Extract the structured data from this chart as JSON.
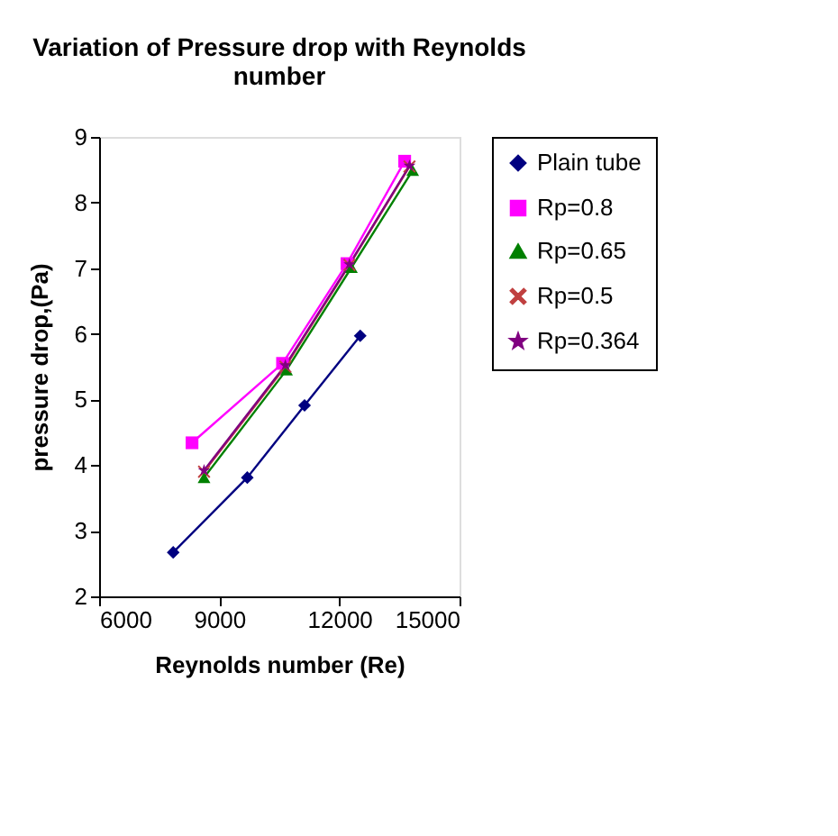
{
  "chart_data": {
    "type": "line",
    "title": "Variation of Pressure drop with Reynolds number",
    "xlabel": "Reynolds number (Re)",
    "ylabel": "pressure drop,(Pa)",
    "xlim": [
      6000,
      15000
    ],
    "xticks": [
      6000,
      9000,
      12000,
      15000
    ],
    "ylim": [
      2,
      9
    ],
    "yticks": [
      2,
      3,
      4,
      5,
      6,
      7,
      8,
      9
    ],
    "grid": false,
    "legend": "right",
    "series": [
      {
        "name": "Plain tube",
        "color": "#000080",
        "marker": "diamond",
        "x": [
          7850,
          9700,
          11130,
          12520
        ],
        "values": [
          2.67,
          3.81,
          4.91,
          5.97
        ]
      },
      {
        "name": "Rp=0.8",
        "color": "#ff00ff",
        "marker": "square",
        "x": [
          8320,
          10580,
          12190,
          13630
        ],
        "values": [
          4.34,
          5.55,
          7.07,
          8.63
        ]
      },
      {
        "name": "Rp=0.65",
        "color": "#008000",
        "marker": "triangle",
        "x": [
          8620,
          10680,
          12300,
          13830
        ],
        "values": [
          3.81,
          5.45,
          7.01,
          8.49
        ]
      },
      {
        "name": "Rp=0.5",
        "color": "#c04040",
        "marker": "cross",
        "x": [
          8620,
          10650,
          12250,
          13750
        ],
        "values": [
          3.9,
          5.5,
          7.05,
          8.55
        ]
      },
      {
        "name": "Rp=0.364",
        "color": "#800080",
        "marker": "star",
        "x": [
          8620,
          10650,
          12250,
          13750
        ],
        "values": [
          3.92,
          5.52,
          7.06,
          8.56
        ]
      }
    ]
  }
}
